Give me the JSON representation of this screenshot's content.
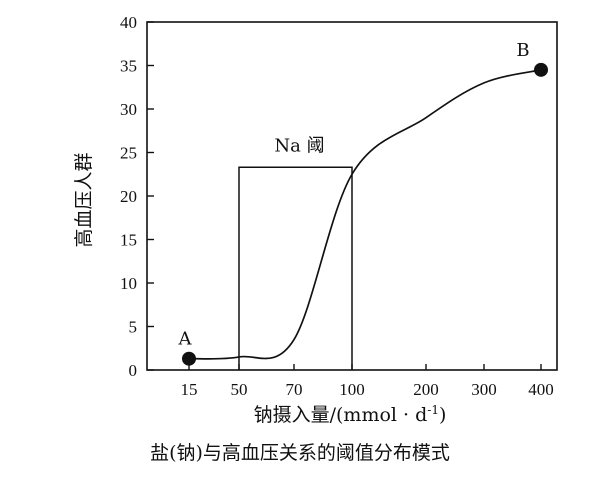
{
  "chart_data": {
    "type": "line",
    "xlabel_main": "钠摄入量/(mmol · d",
    "xlabel_sup": "-1",
    "xlabel_end": ")",
    "ylabel": "高血压人群",
    "x_tick_labels": [
      "15",
      "50",
      "70",
      "100",
      "200",
      "300",
      "400"
    ],
    "y_ticks": [
      0,
      5,
      10,
      15,
      20,
      25,
      30,
      35,
      40
    ],
    "ylim": [
      0,
      40
    ],
    "curve": [
      {
        "x": "15",
        "y": 1.3
      },
      {
        "x": "50",
        "y": 1.5
      },
      {
        "x": "70",
        "y": 3.5
      },
      {
        "x": "100",
        "y": 22.5
      },
      {
        "x": "200",
        "y": 29
      },
      {
        "x": "300",
        "y": 33
      },
      {
        "x": "400",
        "y": 34.5
      }
    ],
    "points": [
      {
        "label": "A",
        "x": "15",
        "y": 1.3
      },
      {
        "label": "B",
        "x": "400",
        "y": 34.5
      }
    ],
    "threshold_box": {
      "label": "Na 阈",
      "x_from": "50",
      "x_to": "100",
      "y_top": 23.3
    }
  },
  "caption": "盐(钠)与高血压关系的阈值分布模式"
}
